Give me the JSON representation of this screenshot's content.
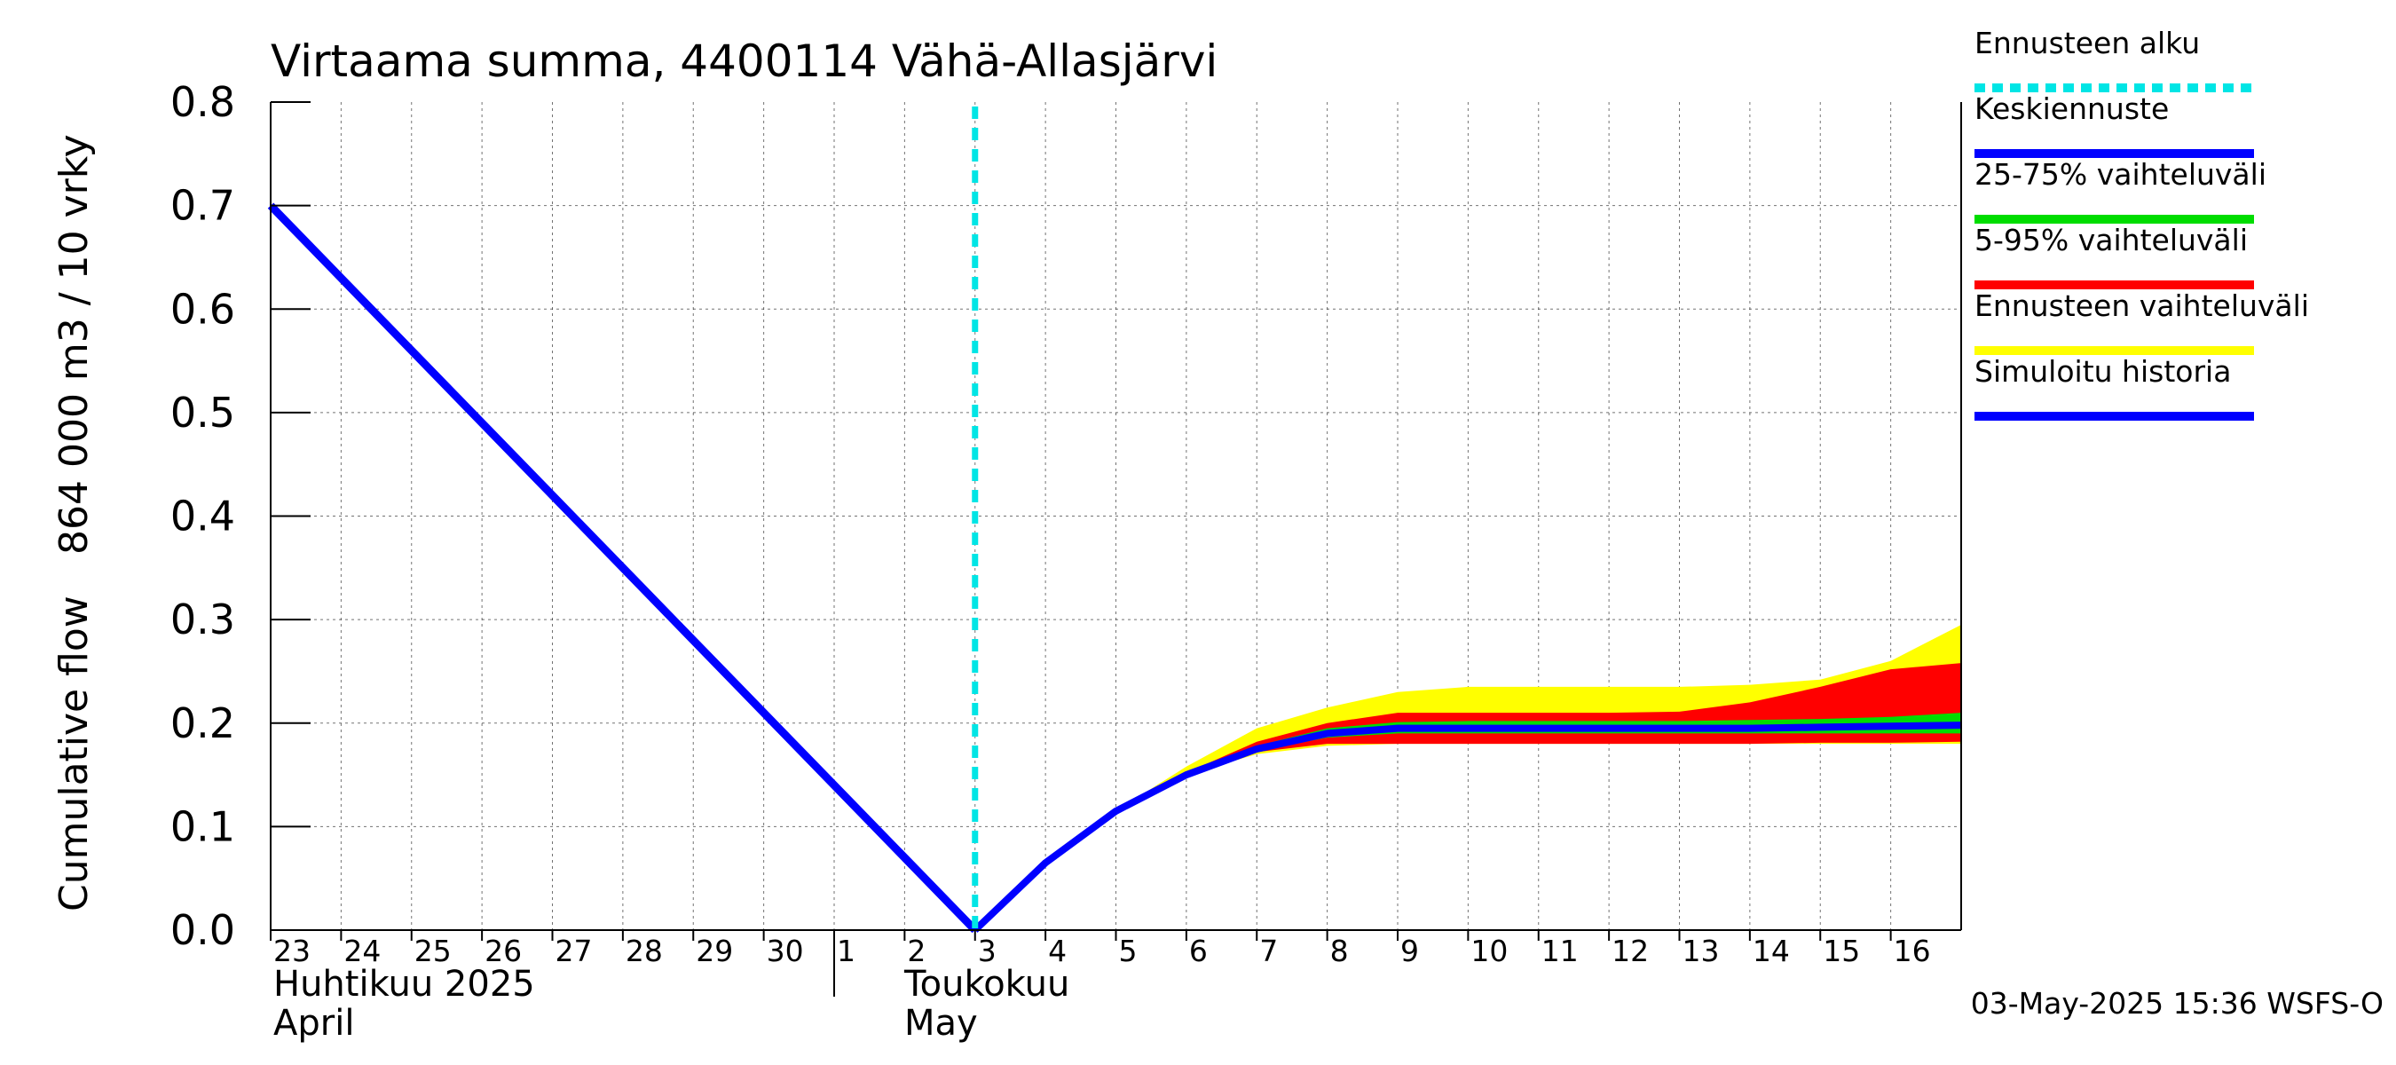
{
  "chart_data": {
    "type": "area",
    "title": "Virtaama summa, 4400114 Vähä-Allasjärvi",
    "ylabel_line1": "Cumulative flow",
    "ylabel_line2": "864 000 m3 / 10 vrky",
    "ylim": [
      0,
      0.8
    ],
    "yticks": [
      "0.0",
      "0.1",
      "0.2",
      "0.3",
      "0.4",
      "0.5",
      "0.6",
      "0.7",
      "0.8"
    ],
    "xlim": [
      0,
      24
    ],
    "x_tick_labels": [
      "23",
      "24",
      "25",
      "26",
      "27",
      "28",
      "29",
      "30",
      "1",
      "2",
      "3",
      "4",
      "5",
      "6",
      "7",
      "8",
      "9",
      "10",
      "11",
      "12",
      "13",
      "14",
      "15",
      "16"
    ],
    "month_boundary_x": 8,
    "month_labels": {
      "april_fi": "Huhtikuu  2025",
      "april_en": "April",
      "may_fi": "Toukokuu",
      "may_en": "May"
    },
    "forecast_start_x": 10,
    "history": {
      "name": "Simuloitu historia",
      "x": [
        0,
        10
      ],
      "y": [
        0.7,
        0.0
      ]
    },
    "median": {
      "name": "Keskiennuste",
      "x": [
        10,
        11,
        12,
        13,
        14,
        15,
        16,
        17,
        18,
        19,
        20,
        21,
        22,
        23,
        24
      ],
      "y": [
        0.0,
        0.065,
        0.115,
        0.15,
        0.175,
        0.19,
        0.195,
        0.195,
        0.195,
        0.195,
        0.195,
        0.195,
        0.196,
        0.197,
        0.198
      ]
    },
    "bands": [
      {
        "name": "Ennusteen vaihteluväli",
        "color": "#ffff00",
        "x": [
          10,
          11,
          12,
          13,
          14,
          15,
          16,
          17,
          18,
          19,
          20,
          21,
          22,
          23,
          24
        ],
        "lower": [
          0.0,
          0.065,
          0.115,
          0.15,
          0.17,
          0.178,
          0.18,
          0.18,
          0.18,
          0.18,
          0.18,
          0.18,
          0.18,
          0.18,
          0.18
        ],
        "upper": [
          0.0,
          0.065,
          0.115,
          0.158,
          0.195,
          0.215,
          0.23,
          0.235,
          0.235,
          0.235,
          0.235,
          0.237,
          0.242,
          0.26,
          0.295
        ]
      },
      {
        "name": "5-95% vaihteluväli",
        "color": "#ff0000",
        "x": [
          10,
          11,
          12,
          13,
          14,
          15,
          16,
          17,
          18,
          19,
          20,
          21,
          22,
          23,
          24
        ],
        "lower": [
          0.0,
          0.065,
          0.115,
          0.15,
          0.172,
          0.18,
          0.18,
          0.18,
          0.18,
          0.18,
          0.18,
          0.18,
          0.181,
          0.181,
          0.182
        ],
        "upper": [
          0.0,
          0.065,
          0.115,
          0.152,
          0.182,
          0.2,
          0.21,
          0.21,
          0.21,
          0.21,
          0.211,
          0.22,
          0.235,
          0.252,
          0.258
        ]
      },
      {
        "name": "25-75% vaihteluväli",
        "color": "#00dd00",
        "x": [
          10,
          11,
          12,
          13,
          14,
          15,
          16,
          17,
          18,
          19,
          20,
          21,
          22,
          23,
          24
        ],
        "lower": [
          0.0,
          0.065,
          0.115,
          0.15,
          0.173,
          0.186,
          0.19,
          0.19,
          0.19,
          0.19,
          0.19,
          0.19,
          0.19,
          0.19,
          0.19
        ],
        "upper": [
          0.0,
          0.065,
          0.115,
          0.151,
          0.178,
          0.195,
          0.201,
          0.202,
          0.202,
          0.202,
          0.202,
          0.203,
          0.204,
          0.206,
          0.21
        ]
      }
    ],
    "legend": [
      {
        "label": "Ennusteen alku",
        "color": "#00e5e5",
        "style": "dashed"
      },
      {
        "label": "Keskiennuste",
        "color": "#0000ff",
        "style": "solid"
      },
      {
        "label": "25-75% vaihteluväli",
        "color": "#00dd00",
        "style": "solid"
      },
      {
        "label": "5-95% vaihteluväli",
        "color": "#ff0000",
        "style": "solid"
      },
      {
        "label": "Ennusteen vaihteluväli",
        "color": "#ffff00",
        "style": "solid"
      },
      {
        "label": "Simuloitu historia",
        "color": "#0000ff",
        "style": "solid"
      }
    ],
    "footer": "03-May-2025 15:36 WSFS-O"
  }
}
